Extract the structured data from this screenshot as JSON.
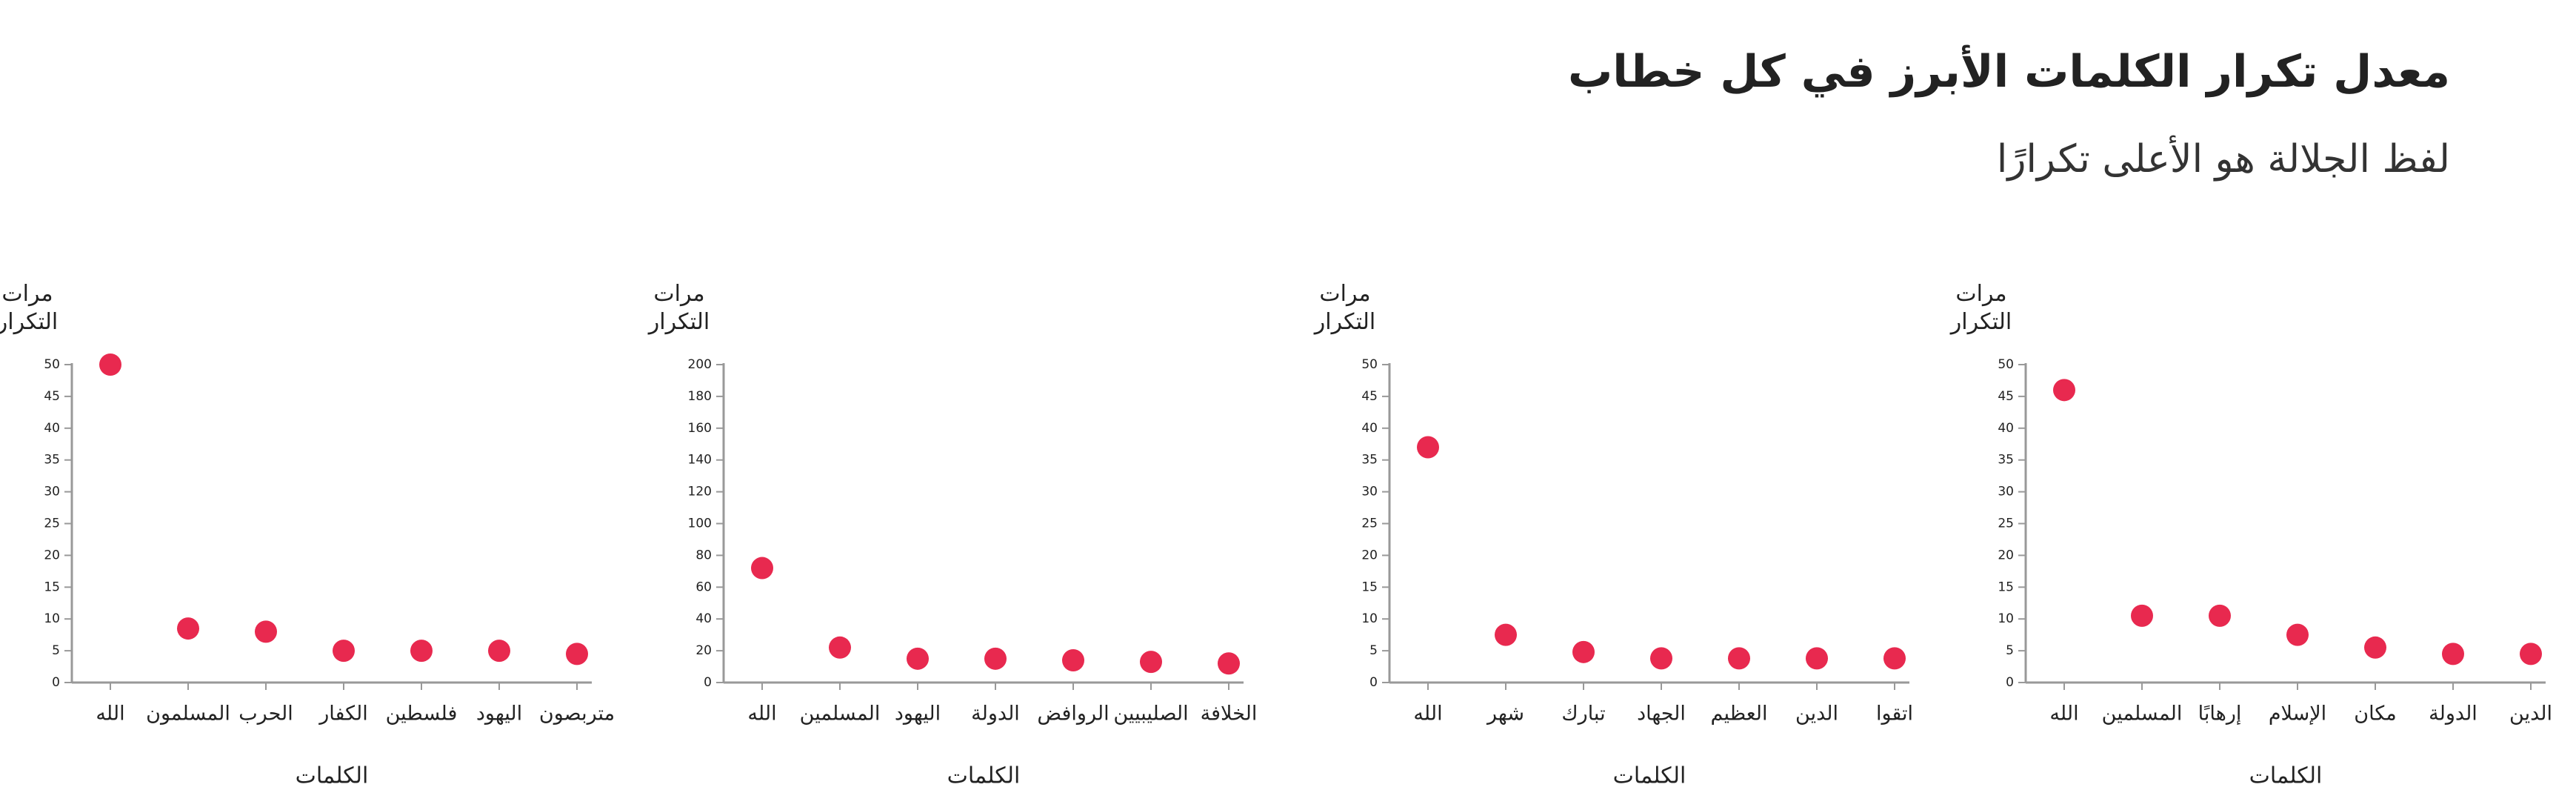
{
  "title": "معدل تكرار الكلمات الأبرز في كل خطاب",
  "subtitle": "لفظ الجلالة هو الأعلى تكرارًا",
  "chart_data": [
    {
      "type": "scatter",
      "y_label": "مرات التكرار",
      "x_label": "الكلمات",
      "color": "#e8294f",
      "categories": [
        "الله",
        "المسلمون",
        "الحرب",
        "الكفار",
        "فلسطين",
        "اليهود",
        "متربصون"
      ],
      "values": [
        50,
        8.5,
        8,
        5,
        5,
        5,
        4.5
      ],
      "ylim": [
        0,
        50
      ],
      "yticks": [
        0,
        5,
        10,
        15,
        20,
        25,
        30,
        35,
        40,
        45,
        50
      ]
    },
    {
      "type": "scatter",
      "y_label": "مرات التكرار",
      "x_label": "الكلمات",
      "color": "#e8294f",
      "categories": [
        "الله",
        "المسلمين",
        "اليهود",
        "الدولة",
        "الروافض",
        "الصليبيين",
        "الخلافة"
      ],
      "values": [
        72,
        22,
        15,
        15,
        14,
        13,
        12
      ],
      "ylim": [
        0,
        200
      ],
      "yticks": [
        0,
        20,
        40,
        60,
        80,
        100,
        120,
        140,
        160,
        180,
        200
      ]
    },
    {
      "type": "scatter",
      "y_label": "مرات التكرار",
      "x_label": "الكلمات",
      "color": "#e8294f",
      "categories": [
        "الله",
        "شهر",
        "تبارك",
        "الجهاد",
        "العظيم",
        "الدين",
        "اتقوا"
      ],
      "values": [
        37,
        7.5,
        4.8,
        3.8,
        3.8,
        3.8,
        3.8
      ],
      "ylim": [
        0,
        50
      ],
      "yticks": [
        0,
        5,
        10,
        15,
        20,
        25,
        30,
        35,
        40,
        45,
        50
      ]
    },
    {
      "type": "scatter",
      "y_label": "مرات التكرار",
      "x_label": "الكلمات",
      "color": "#e8294f",
      "categories": [
        "الله",
        "المسلمين",
        "إرهابًا",
        "الإسلام",
        "مكان",
        "الدولة",
        "الدين"
      ],
      "values": [
        46,
        10.5,
        10.5,
        7.5,
        5.5,
        4.5,
        4.5
      ],
      "ylim": [
        0,
        50
      ],
      "yticks": [
        0,
        5,
        10,
        15,
        20,
        25,
        30,
        35,
        40,
        45,
        50
      ]
    }
  ]
}
